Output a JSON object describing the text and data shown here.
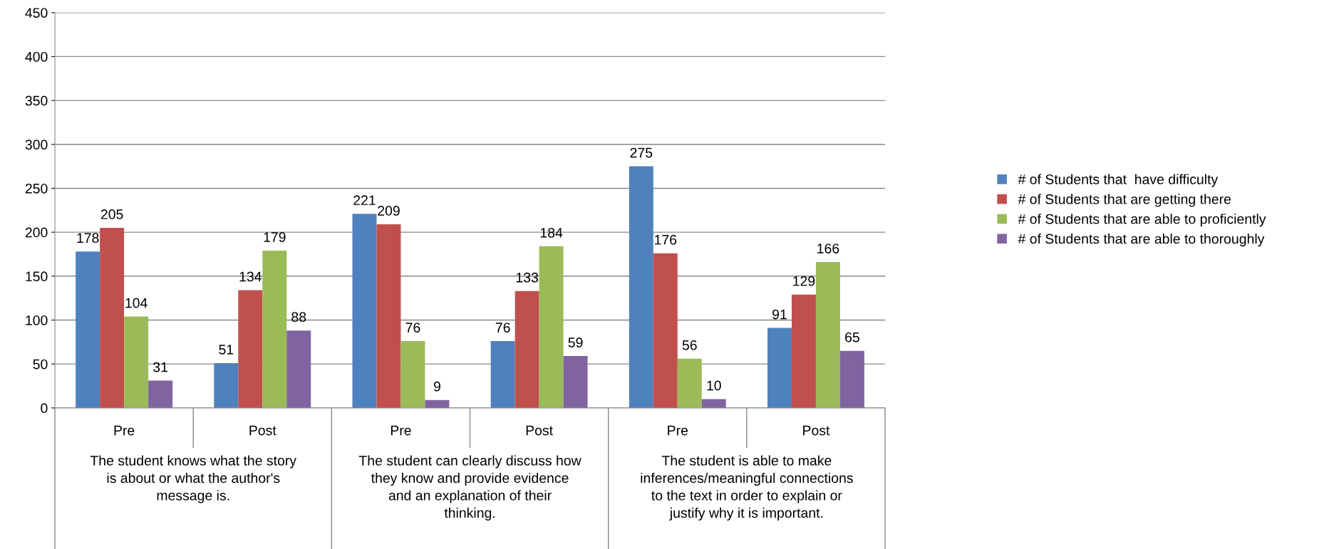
{
  "chart_data": {
    "type": "bar",
    "categories": [
      "Pre",
      "Post",
      "Pre",
      "Post",
      "Pre",
      "Post"
    ],
    "series": [
      {
        "name": "# of Students that  have difficulty",
        "color": "#4f81bd",
        "values": [
          178,
          51,
          221,
          76,
          275,
          91
        ]
      },
      {
        "name": "# of Students that are getting there",
        "color": "#c0504d",
        "values": [
          205,
          134,
          209,
          133,
          176,
          129
        ]
      },
      {
        "name": "# of Students that are able to proficiently",
        "color": "#9bbb59",
        "values": [
          104,
          179,
          76,
          184,
          56,
          166
        ]
      },
      {
        "name": "# of Students that are able to thoroughly",
        "color": "#8064a2",
        "values": [
          31,
          88,
          9,
          59,
          10,
          65
        ]
      }
    ],
    "annotations": [
      "The student knows what the story\nis about or what the author's\nmessage is.",
      "The student can clearly discuss how\nthey know and provide evidence\nand an explanation of their\nthinking.",
      "The student is able to make\ninferences/meaningful connections\nto the text in order to explain or\njustify why it is important."
    ],
    "ylim": [
      0,
      450
    ],
    "yticks": [
      0,
      50,
      100,
      150,
      200,
      250,
      300,
      350,
      400,
      450
    ],
    "grid": "y",
    "legend": "right",
    "data_labels": true
  }
}
